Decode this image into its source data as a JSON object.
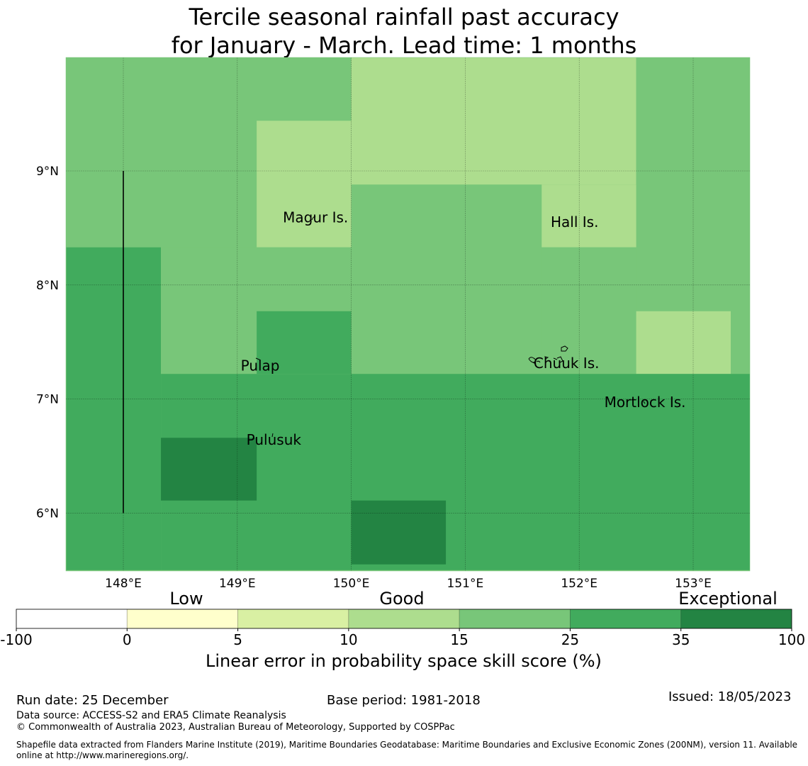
{
  "title": {
    "line1": "Tercile seasonal rainfall past accuracy",
    "line2": "for January - March. Lead time: 1 months"
  },
  "map": {
    "lon_ticks": [
      "148°E",
      "149°E",
      "150°E",
      "151°E",
      "152°E",
      "153°E"
    ],
    "lat_ticks": [
      "9°N",
      "8°N",
      "7°N",
      "6°N"
    ],
    "lon_values": [
      148,
      149,
      150,
      151,
      152,
      153
    ],
    "lat_values": [
      9,
      8,
      7,
      6
    ],
    "lon_range": [
      147.5,
      153.5
    ],
    "lat_range": [
      5.5,
      10.0
    ],
    "cells": [
      {
        "lon0": 147.5,
        "lon1": 150.0,
        "lat0": 8.33,
        "lat1": 10.0,
        "level": 4
      },
      {
        "lon0": 150.0,
        "lon1": 152.5,
        "lat0": 8.88,
        "lat1": 10.0,
        "level": 3
      },
      {
        "lon0": 152.5,
        "lon1": 153.5,
        "lat0": 7.22,
        "lat1": 10.0,
        "level": 4
      },
      {
        "lon0": 149.17,
        "lon1": 150.0,
        "lat0": 8.33,
        "lat1": 9.44,
        "level": 3
      },
      {
        "lon0": 151.67,
        "lon1": 152.5,
        "lat0": 8.33,
        "lat1": 8.88,
        "level": 3
      },
      {
        "lon0": 150.0,
        "lon1": 151.67,
        "lat0": 7.22,
        "lat1": 8.88,
        "level": 4
      },
      {
        "lon0": 151.67,
        "lon1": 152.5,
        "lat0": 7.22,
        "lat1": 8.33,
        "level": 4
      },
      {
        "lon0": 147.5,
        "lon1": 148.33,
        "lat0": 5.5,
        "lat1": 8.33,
        "level": 5
      },
      {
        "lon0": 148.33,
        "lon1": 149.17,
        "lat0": 7.22,
        "lat1": 8.33,
        "level": 4
      },
      {
        "lon0": 149.17,
        "lon1": 150.0,
        "lat0": 7.77,
        "lat1": 8.33,
        "level": 4
      },
      {
        "lon0": 149.17,
        "lon1": 150.0,
        "lat0": 7.22,
        "lat1": 7.77,
        "level": 5
      },
      {
        "lon0": 152.5,
        "lon1": 153.33,
        "lat0": 7.22,
        "lat1": 7.77,
        "level": 3
      },
      {
        "lon0": 153.33,
        "lon1": 153.5,
        "lat0": 7.22,
        "lat1": 7.77,
        "level": 4
      },
      {
        "lon0": 148.33,
        "lon1": 153.5,
        "lat0": 5.5,
        "lat1": 7.22,
        "level": 5
      },
      {
        "lon0": 148.33,
        "lon1": 149.17,
        "lat0": 6.11,
        "lat1": 6.66,
        "level": 6
      },
      {
        "lon0": 150.0,
        "lon1": 150.83,
        "lat0": 5.55,
        "lat1": 6.11,
        "level": 6
      }
    ],
    "eez_line": {
      "lon": 148.0,
      "lat_from": 6.0,
      "lat_to": 9.0
    },
    "places": [
      {
        "name": "Magur Is.",
        "lon": 149.4,
        "lat": 8.55
      },
      {
        "name": "Hall Is.",
        "lon": 151.75,
        "lat": 8.51
      },
      {
        "name": "Pulap",
        "lon": 149.03,
        "lat": 7.25
      },
      {
        "name": "Chuuk Is.",
        "lon": 151.6,
        "lat": 7.27
      },
      {
        "name": "Mortlock Is.",
        "lon": 152.22,
        "lat": 6.93
      },
      {
        "name": "Pulusuk",
        "lon": 149.08,
        "lat": 6.6
      }
    ]
  },
  "legend": {
    "category_labels": [
      "Low",
      "Good",
      "Exceptional"
    ],
    "boundaries": [
      "-100",
      "0",
      "5",
      "10",
      "15",
      "25",
      "35",
      "100"
    ],
    "colors": [
      "#ffffff",
      "#ffffcc",
      "#d9f0a3",
      "#addd8e",
      "#78c679",
      "#41ab5d",
      "#238443"
    ],
    "axis_label": "Linear error in probability space skill score (%)"
  },
  "footer": {
    "run_date": "Run date: 25 December",
    "base_period": "Base period: 1981-2018",
    "issued": "Issued: 18/05/2023",
    "data_source": "Data source: ACCESS-S2 and ERA5 Climate Reanalysis",
    "copyright": "© Commonwealth of Australia 2023, Australian Bureau of Meteorology, Supported by COSPPac",
    "shapefile_line1": "Shapefile data extracted from Flanders Marine Institute (2019), Maritime Boundaries Geodatabase: Maritime Boundaries and Exclusive Economic Zones (200NM), version 11. Available",
    "shapefile_line2": "online at http://www.marineregions.org/."
  }
}
